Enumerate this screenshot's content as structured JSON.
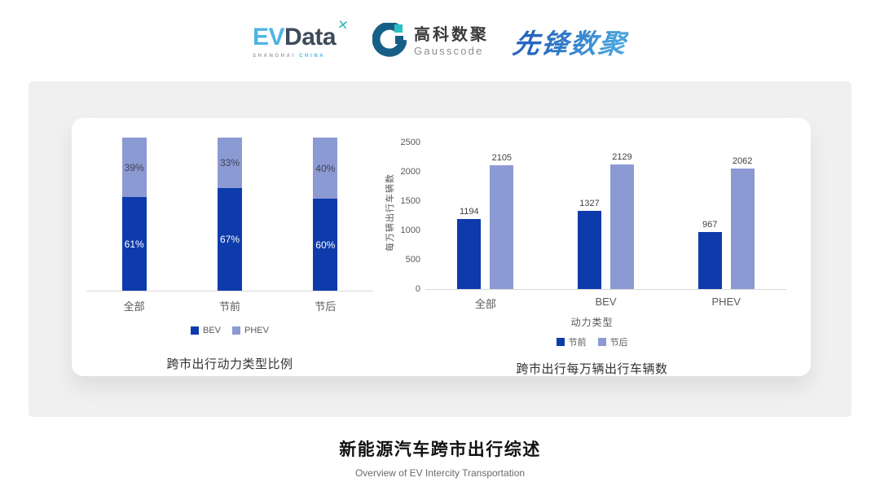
{
  "header": {
    "evdata": {
      "ev": "EV",
      "data": "Data",
      "x_icon": "x-spark-icon",
      "sub_left": "SHANGHAI",
      "sub_right": "CHINA"
    },
    "gausscode": {
      "icon": "gausscode-g-icon",
      "cn": "高科数聚",
      "en": "Gausscode"
    },
    "xianfeng": {
      "text": "先锋数聚"
    }
  },
  "colors": {
    "bar_dark_blue": "#0d3bab",
    "bar_light_blue": "#8c9ad3",
    "panel_gray": "#f0f0f1",
    "axis_line": "#d9d9d9",
    "evdata_blue": "#4db5e3",
    "evdata_dark": "#3e4b5c",
    "teal": "#2db8b4",
    "gauss_blue": "#175f87",
    "xianfeng_blue": "#2e7fc8"
  },
  "chart_data": [
    {
      "type": "bar",
      "subtype": "stacked-100",
      "title": "跨市出行动力类型比例",
      "categories": [
        "全部",
        "节前",
        "节后"
      ],
      "series": [
        {
          "name": "BEV",
          "color": "#0d3bab",
          "values": [
            61,
            67,
            60
          ]
        },
        {
          "name": "PHEV",
          "color": "#8c9ad3",
          "values": [
            39,
            33,
            40
          ]
        }
      ],
      "value_suffix": "%",
      "ylim": [
        0,
        100
      ],
      "legend_position": "bottom",
      "grid": false
    },
    {
      "type": "bar",
      "subtype": "grouped",
      "title": "跨市出行每万辆出行车辆数",
      "xlabel": "动力类型",
      "ylabel": "每万辆出行车辆数",
      "categories": [
        "全部",
        "BEV",
        "PHEV"
      ],
      "series": [
        {
          "name": "节前",
          "color": "#0d3bab",
          "values": [
            1194,
            1327,
            967
          ]
        },
        {
          "name": "节后",
          "color": "#8c9ad3",
          "values": [
            2105,
            2129,
            2062
          ]
        }
      ],
      "yticks": [
        0,
        500,
        1000,
        1500,
        2000,
        2500
      ],
      "ylim": [
        0,
        2500
      ],
      "legend_position": "bottom",
      "grid": false
    }
  ],
  "footer": {
    "title": "新能源汽车跨市出行综述",
    "subtitle": "Overview of EV Intercity Transportation"
  }
}
